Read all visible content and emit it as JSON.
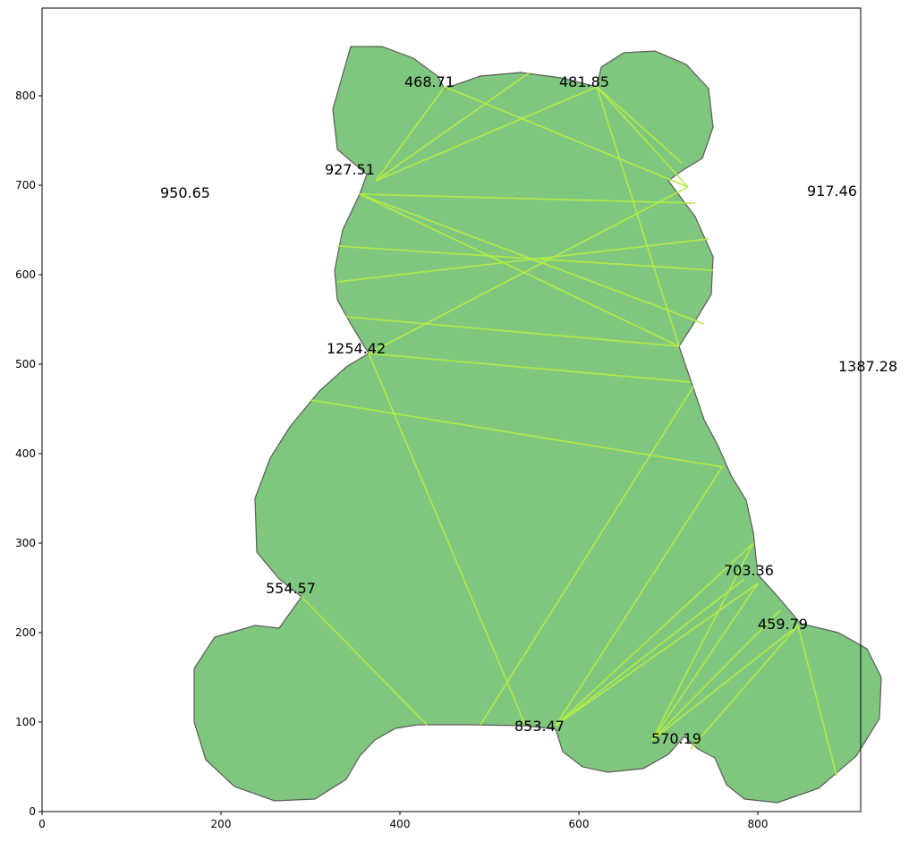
{
  "chart_data": {
    "type": "polygon-with-chords",
    "title": "",
    "xlabel": "",
    "ylabel": "",
    "xlim": [
      0,
      915
    ],
    "ylim": [
      0,
      898
    ],
    "xticks": [
      0,
      200,
      400,
      600,
      800
    ],
    "yticks": [
      0,
      100,
      200,
      300,
      400,
      500,
      600,
      700,
      800
    ],
    "grid": false,
    "colors": {
      "fill": "#7fc67e",
      "edge": "#5b5b5b",
      "chord": "#b5ec48"
    },
    "shape_outline": [
      [
        345,
        855
      ],
      [
        380,
        855
      ],
      [
        415,
        842
      ],
      [
        442,
        822
      ],
      [
        450,
        808
      ],
      [
        490,
        822
      ],
      [
        535,
        826
      ],
      [
        580,
        820
      ],
      [
        620,
        810
      ],
      [
        625,
        832
      ],
      [
        650,
        848
      ],
      [
        685,
        850
      ],
      [
        720,
        835
      ],
      [
        745,
        808
      ],
      [
        750,
        765
      ],
      [
        738,
        730
      ],
      [
        715,
        716
      ],
      [
        700,
        705
      ],
      [
        730,
        665
      ],
      [
        750,
        620
      ],
      [
        748,
        578
      ],
      [
        728,
        545
      ],
      [
        712,
        520
      ],
      [
        724,
        485
      ],
      [
        740,
        438
      ],
      [
        755,
        410
      ],
      [
        770,
        376
      ],
      [
        787,
        348
      ],
      [
        795,
        312
      ],
      [
        800,
        265
      ],
      [
        820,
        243
      ],
      [
        848,
        210
      ],
      [
        890,
        200
      ],
      [
        922,
        182
      ],
      [
        938,
        150
      ],
      [
        936,
        104
      ],
      [
        910,
        62
      ],
      [
        868,
        26
      ],
      [
        822,
        10
      ],
      [
        785,
        14
      ],
      [
        765,
        30
      ],
      [
        752,
        60
      ],
      [
        733,
        70
      ],
      [
        718,
        84
      ],
      [
        700,
        64
      ],
      [
        672,
        48
      ],
      [
        632,
        44
      ],
      [
        604,
        50
      ],
      [
        582,
        67
      ],
      [
        574,
        92
      ],
      [
        540,
        96
      ],
      [
        480,
        97
      ],
      [
        420,
        97
      ],
      [
        395,
        93
      ],
      [
        372,
        80
      ],
      [
        355,
        62
      ],
      [
        340,
        36
      ],
      [
        305,
        14
      ],
      [
        260,
        12
      ],
      [
        215,
        28
      ],
      [
        183,
        58
      ],
      [
        170,
        100
      ],
      [
        170,
        160
      ],
      [
        193,
        195
      ],
      [
        238,
        208
      ],
      [
        265,
        205
      ],
      [
        290,
        240
      ],
      [
        265,
        260
      ],
      [
        240,
        290
      ],
      [
        238,
        350
      ],
      [
        255,
        395
      ],
      [
        277,
        430
      ],
      [
        310,
        470
      ],
      [
        340,
        497
      ],
      [
        365,
        512
      ],
      [
        345,
        545
      ],
      [
        330,
        572
      ],
      [
        327,
        605
      ],
      [
        336,
        650
      ],
      [
        355,
        690
      ],
      [
        363,
        712
      ],
      [
        330,
        740
      ],
      [
        325,
        785
      ]
    ],
    "chords": [
      [
        [
          373,
          705
        ],
        [
          450,
          810
        ]
      ],
      [
        [
          373,
          705
        ],
        [
          545,
          826
        ]
      ],
      [
        [
          373,
          705
        ],
        [
          620,
          810
        ]
      ],
      [
        [
          450,
          810
        ],
        [
          722,
          698
        ]
      ],
      [
        [
          620,
          810
        ],
        [
          722,
          698
        ]
      ],
      [
        [
          620,
          810
        ],
        [
          715,
          725
        ]
      ],
      [
        [
          620,
          810
        ],
        [
          712,
          520
        ]
      ],
      [
        [
          355,
          690
        ],
        [
          730,
          680
        ]
      ],
      [
        [
          355,
          690
        ],
        [
          712,
          520
        ]
      ],
      [
        [
          355,
          690
        ],
        [
          740,
          545
        ]
      ],
      [
        [
          365,
          512
        ],
        [
          722,
          698
        ]
      ],
      [
        [
          330,
          632
        ],
        [
          750,
          605
        ]
      ],
      [
        [
          330,
          592
        ],
        [
          745,
          640
        ]
      ],
      [
        [
          340,
          553
        ],
        [
          712,
          520
        ]
      ],
      [
        [
          365,
          512
        ],
        [
          725,
          480
        ]
      ],
      [
        [
          300,
          460
        ],
        [
          762,
          385
        ]
      ],
      [
        [
          365,
          512
        ],
        [
          540,
          97
        ]
      ],
      [
        [
          290,
          240
        ],
        [
          430,
          97
        ]
      ],
      [
        [
          490,
          97
        ],
        [
          728,
          475
        ]
      ],
      [
        [
          574,
          96
        ],
        [
          760,
          385
        ]
      ],
      [
        [
          574,
          96
        ],
        [
          795,
          300
        ]
      ],
      [
        [
          574,
          96
        ],
        [
          785,
          260
        ]
      ],
      [
        [
          574,
          96
        ],
        [
          800,
          255
        ]
      ],
      [
        [
          682,
          80
        ],
        [
          800,
          255
        ]
      ],
      [
        [
          682,
          80
        ],
        [
          795,
          300
        ]
      ],
      [
        [
          682,
          80
        ],
        [
          825,
          225
        ]
      ],
      [
        [
          682,
          80
        ],
        [
          845,
          208
        ]
      ],
      [
        [
          725,
          70
        ],
        [
          845,
          208
        ]
      ],
      [
        [
          845,
          208
        ],
        [
          888,
          40
        ]
      ]
    ],
    "annotations": [
      {
        "text": "468.71",
        "x": 405,
        "y": 810
      },
      {
        "text": "481.85",
        "x": 578,
        "y": 810
      },
      {
        "text": "927.51",
        "x": 316,
        "y": 712
      },
      {
        "text": "950.65",
        "x": 132,
        "y": 686
      },
      {
        "text": "917.46",
        "x": 855,
        "y": 688
      },
      {
        "text": "1254.42",
        "x": 318,
        "y": 512
      },
      {
        "text": "1387.28",
        "x": 890,
        "y": 492
      },
      {
        "text": "554.57",
        "x": 250,
        "y": 244
      },
      {
        "text": "703.36",
        "x": 762,
        "y": 264
      },
      {
        "text": "459.79",
        "x": 800,
        "y": 204
      },
      {
        "text": "853.47",
        "x": 528,
        "y": 90
      },
      {
        "text": "570.19",
        "x": 681,
        "y": 76
      }
    ]
  }
}
